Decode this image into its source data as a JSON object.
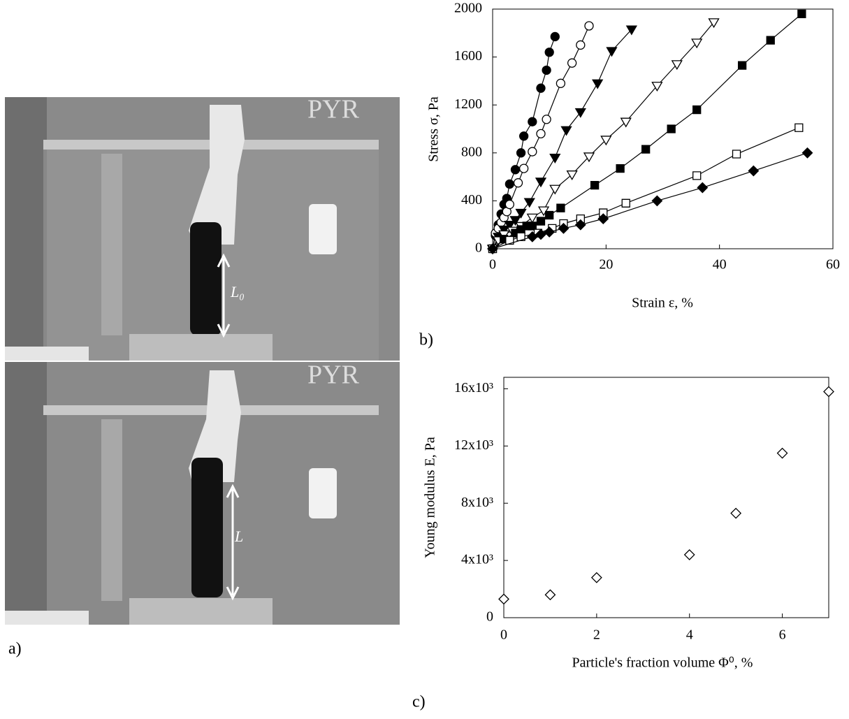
{
  "panels": {
    "a": {
      "label": "a)",
      "photo_top_label": "L₀",
      "photo_bottom_label": "L",
      "beaker_text": "PYR"
    }
  },
  "chart_data": [
    {
      "type": "scatter",
      "panel_label": "b)",
      "x_label": "Strain ε, %",
      "y_label": "Stress σ, Pa",
      "xlim": [
        0,
        60
      ],
      "ylim": [
        0,
        2000
      ],
      "xticks": [
        0,
        20,
        40,
        60
      ],
      "yticks": [
        0,
        400,
        800,
        1200,
        1600,
        2000
      ],
      "fit_lines": true,
      "series": [
        {
          "marker": "circle",
          "filled": true,
          "color": "#000000",
          "x": [
            0,
            0.5,
            1,
            1.5,
            2,
            2.5,
            3,
            4,
            5,
            5.5,
            7,
            8.5,
            9.5,
            10,
            11
          ],
          "values": [
            0,
            110,
            200,
            290,
            370,
            420,
            540,
            660,
            800,
            940,
            1060,
            1340,
            1490,
            1640,
            1770
          ]
        },
        {
          "marker": "circle",
          "filled": false,
          "color": "#000000",
          "x": [
            0,
            0.5,
            1,
            1.5,
            2,
            2.5,
            3,
            4.5,
            5.5,
            7,
            8.5,
            9.5,
            12,
            14,
            15.5,
            17
          ],
          "values": [
            0,
            130,
            170,
            220,
            260,
            310,
            370,
            550,
            670,
            810,
            960,
            1080,
            1380,
            1550,
            1700,
            1860
          ]
        },
        {
          "marker": "triangle-down",
          "filled": true,
          "color": "#000000",
          "x": [
            0,
            1,
            2,
            3,
            4,
            5,
            6.5,
            8.5,
            11,
            13,
            15.5,
            18.5,
            21,
            24.5
          ],
          "values": [
            0,
            100,
            160,
            200,
            240,
            300,
            390,
            560,
            760,
            990,
            1140,
            1380,
            1650,
            1830
          ]
        },
        {
          "marker": "triangle-down",
          "filled": false,
          "color": "#000000",
          "x": [
            0,
            1,
            2,
            3.5,
            5,
            7,
            9,
            11,
            14,
            17,
            20,
            23.5,
            29,
            32.5,
            36,
            39
          ],
          "values": [
            0,
            70,
            120,
            150,
            190,
            260,
            320,
            500,
            620,
            770,
            910,
            1060,
            1360,
            1540,
            1720,
            1890
          ]
        },
        {
          "marker": "square",
          "filled": true,
          "color": "#000000",
          "x": [
            0,
            2,
            4,
            5,
            6,
            7,
            8.5,
            10,
            12,
            18,
            22.5,
            27,
            31.5,
            36,
            44,
            49,
            54.5
          ],
          "values": [
            0,
            80,
            130,
            160,
            190,
            190,
            230,
            280,
            340,
            530,
            670,
            830,
            1000,
            1160,
            1530,
            1740,
            1960
          ]
        },
        {
          "marker": "square",
          "filled": false,
          "color": "#000000",
          "x": [
            0,
            3,
            5,
            8,
            10.5,
            12.5,
            15.5,
            19.5,
            23.5,
            36,
            43,
            54
          ],
          "values": [
            0,
            70,
            100,
            130,
            170,
            210,
            250,
            300,
            380,
            610,
            790,
            1010
          ]
        },
        {
          "marker": "diamond",
          "filled": true,
          "color": "#000000",
          "x": [
            0,
            7,
            8.5,
            10,
            12.5,
            15.5,
            19.5,
            29,
            37,
            46,
            55.5
          ],
          "values": [
            0,
            100,
            120,
            140,
            170,
            200,
            250,
            400,
            510,
            650,
            800
          ]
        }
      ]
    },
    {
      "type": "scatter",
      "panel_label": "c)",
      "x_label": "Particle's fraction volume  Φ⁰, %",
      "y_label": "Young modulus E, Pa",
      "xlim": [
        0,
        7
      ],
      "ylim": [
        0,
        16800
      ],
      "xticks": [
        0,
        2,
        4,
        6
      ],
      "yticks": [
        0,
        {
          "value": 4000,
          "label": "4x10³"
        },
        {
          "value": 8000,
          "label": "8x10³"
        },
        {
          "value": 12000,
          "label": "12x10³"
        },
        {
          "value": 16000,
          "label": "16x10³"
        }
      ],
      "fit_lines": false,
      "series": [
        {
          "marker": "diamond",
          "filled": false,
          "color": "#000000",
          "x": [
            0,
            1,
            2,
            4,
            5,
            6,
            7
          ],
          "values": [
            1300,
            1600,
            2800,
            4400,
            7300,
            11500,
            15800
          ]
        }
      ]
    }
  ]
}
